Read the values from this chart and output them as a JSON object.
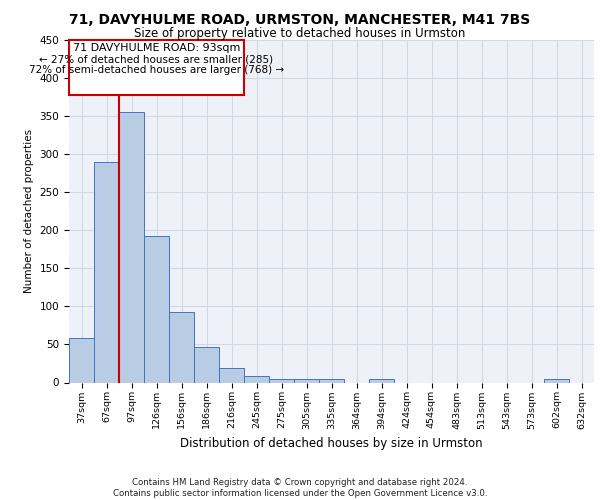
{
  "title1": "71, DAVYHULME ROAD, URMSTON, MANCHESTER, M41 7BS",
  "title2": "Size of property relative to detached houses in Urmston",
  "xlabel": "Distribution of detached houses by size in Urmston",
  "ylabel": "Number of detached properties",
  "footer": "Contains HM Land Registry data © Crown copyright and database right 2024.\nContains public sector information licensed under the Open Government Licence v3.0.",
  "bin_labels": [
    "37sqm",
    "67sqm",
    "97sqm",
    "126sqm",
    "156sqm",
    "186sqm",
    "216sqm",
    "245sqm",
    "275sqm",
    "305sqm",
    "335sqm",
    "364sqm",
    "394sqm",
    "424sqm",
    "454sqm",
    "483sqm",
    "513sqm",
    "543sqm",
    "573sqm",
    "602sqm",
    "632sqm"
  ],
  "bar_values": [
    59,
    290,
    355,
    193,
    92,
    46,
    19,
    9,
    5,
    5,
    5,
    0,
    5,
    0,
    0,
    0,
    0,
    0,
    0,
    5,
    0
  ],
  "bar_color": "#b8cce4",
  "bar_edge_color": "#4472c4",
  "grid_color": "#d0d8e8",
  "background_color": "#eef2f8",
  "annotation_box_color": "#ffffff",
  "annotation_box_edge": "#cc0000",
  "vline_color": "#cc0000",
  "vline_x": 2.0,
  "annotation_text_line1": "71 DAVYHULME ROAD: 93sqm",
  "annotation_text_line2": "← 27% of detached houses are smaller (285)",
  "annotation_text_line3": "72% of semi-detached houses are larger (768) →",
  "ylim": [
    0,
    450
  ],
  "yticks": [
    0,
    50,
    100,
    150,
    200,
    250,
    300,
    350,
    400,
    450
  ]
}
